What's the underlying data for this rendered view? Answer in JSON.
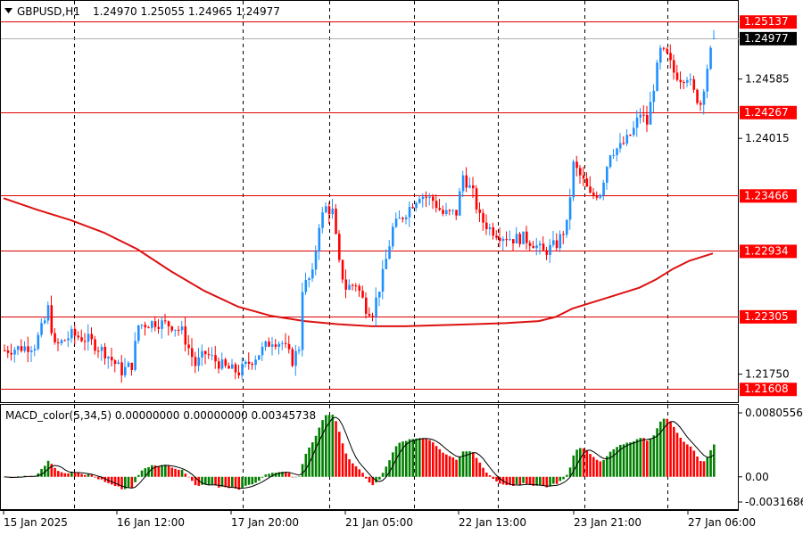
{
  "header": {
    "symbol_label": "GBPUSD,H1",
    "ohlc_text": "1.24970 1.25055 1.24965 1.24977"
  },
  "indicator": {
    "label": "MACD_color(5,34,5) 0.00000000 0.00000000 0.00345738",
    "ticks": [
      "0.0080556",
      "0.00",
      "-0.0031686"
    ]
  },
  "colors": {
    "bull": "#1e90ff",
    "bear": "#ff0000",
    "level_line": "#e00000",
    "ma_line": "#dd1111",
    "grid": "#000000",
    "macd_up": "#008000",
    "macd_down": "#ff0000",
    "signal": "#000000",
    "tag_bg_red": "#ff0000",
    "tag_bg_black": "#000000",
    "tag_text": "#ffffff"
  },
  "price_axis_ticks": [
    "1.24585",
    "1.24015",
    "1.21750"
  ],
  "price_tags": [
    {
      "value": 1.25137,
      "text": "1.25137",
      "style": "red"
    },
    {
      "value": 1.24977,
      "text": "1.24977",
      "style": "black"
    },
    {
      "value": 1.24267,
      "text": "1.24267",
      "style": "red"
    },
    {
      "value": 1.23466,
      "text": "1.23466",
      "style": "red"
    },
    {
      "value": 1.22934,
      "text": "1.22934",
      "style": "red"
    },
    {
      "value": 1.22305,
      "text": "1.22305",
      "style": "red"
    },
    {
      "value": 1.21608,
      "text": "1.21608",
      "style": "red"
    }
  ],
  "time_labels": [
    "15 Jan 2025",
    "16 Jan 12:00",
    "17 Jan 20:00",
    "21 Jan 05:00",
    "22 Jan 13:00",
    "23 Jan 21:00",
    "27 Jan 06:00"
  ],
  "chart_data": {
    "type": "candlestick",
    "symbol": "GBPUSD",
    "timeframe": "H1",
    "ylim": [
      1.2155,
      1.2525
    ],
    "horizontal_levels": [
      1.25137,
      1.24267,
      1.23466,
      1.22934,
      1.22305,
      1.21608
    ],
    "current_price": 1.24977,
    "last_bar": {
      "open": 1.2497,
      "high": 1.25055,
      "low": 1.24965,
      "close": 1.24977
    },
    "close_path": [
      [
        0,
        1.2198
      ],
      [
        6,
        1.2201
      ],
      [
        9,
        1.2203
      ],
      [
        12,
        1.2226
      ],
      [
        13,
        1.2238
      ],
      [
        15,
        1.2201
      ],
      [
        20,
        1.2213
      ],
      [
        25,
        1.2208
      ],
      [
        30,
        1.2196
      ],
      [
        35,
        1.2178
      ],
      [
        38,
        1.2184
      ],
      [
        40,
        1.2222
      ],
      [
        45,
        1.2225
      ],
      [
        50,
        1.2222
      ],
      [
        53,
        1.2216
      ],
      [
        55,
        1.22
      ],
      [
        57,
        1.2184
      ],
      [
        60,
        1.2195
      ],
      [
        63,
        1.2188
      ],
      [
        66,
        1.2181
      ],
      [
        70,
        1.2177
      ],
      [
        75,
        1.2192
      ],
      [
        80,
        1.2208
      ],
      [
        83,
        1.2205
      ],
      [
        86,
        1.2188
      ],
      [
        88,
        1.2201
      ],
      [
        89,
        1.2258
      ],
      [
        92,
        1.227
      ],
      [
        94,
        1.232
      ],
      [
        96,
        1.2335
      ],
      [
        98,
        1.2331
      ],
      [
        100,
        1.228
      ],
      [
        102,
        1.2258
      ],
      [
        105,
        1.2262
      ],
      [
        108,
        1.2239
      ],
      [
        110,
        1.2235
      ],
      [
        113,
        1.227
      ],
      [
        116,
        1.2315
      ],
      [
        120,
        1.2331
      ],
      [
        124,
        1.2348
      ],
      [
        128,
        1.2342
      ],
      [
        131,
        1.2329
      ],
      [
        135,
        1.233
      ],
      [
        137,
        1.2366
      ],
      [
        140,
        1.2348
      ],
      [
        142,
        1.2325
      ],
      [
        145,
        1.2315
      ],
      [
        148,
        1.2309
      ],
      [
        152,
        1.2305
      ],
      [
        155,
        1.2306
      ],
      [
        158,
        1.2301
      ],
      [
        161,
        1.2292
      ],
      [
        165,
        1.23
      ],
      [
        168,
        1.2318
      ],
      [
        170,
        1.2376
      ],
      [
        173,
        1.236
      ],
      [
        175,
        1.2346
      ],
      [
        178,
        1.235
      ],
      [
        181,
        1.2389
      ],
      [
        184,
        1.2393
      ],
      [
        186,
        1.24
      ],
      [
        188,
        1.241
      ],
      [
        190,
        1.2426
      ],
      [
        192,
        1.2416
      ],
      [
        194,
        1.2452
      ],
      [
        196,
        1.2485
      ],
      [
        198,
        1.248
      ],
      [
        200,
        1.2465
      ],
      [
        202,
        1.246
      ],
      [
        204,
        1.2462
      ],
      [
        206,
        1.2445
      ],
      [
        208,
        1.2435
      ],
      [
        210,
        1.247
      ],
      [
        212,
        1.2498
      ]
    ],
    "moving_average": [
      [
        0,
        1.2344
      ],
      [
        10,
        1.2333
      ],
      [
        20,
        1.2323
      ],
      [
        30,
        1.2311
      ],
      [
        40,
        1.2295
      ],
      [
        50,
        1.2274
      ],
      [
        60,
        1.2255
      ],
      [
        70,
        1.224
      ],
      [
        80,
        1.2231
      ],
      [
        90,
        1.2226
      ],
      [
        100,
        1.2223
      ],
      [
        110,
        1.2221
      ],
      [
        120,
        1.2221
      ],
      [
        130,
        1.2222
      ],
      [
        140,
        1.2223
      ],
      [
        150,
        1.2224
      ],
      [
        160,
        1.2226
      ],
      [
        165,
        1.223
      ],
      [
        170,
        1.2238
      ],
      [
        180,
        1.2248
      ],
      [
        190,
        1.2258
      ],
      [
        195,
        1.2266
      ],
      [
        200,
        1.2276
      ],
      [
        205,
        1.2284
      ],
      [
        212,
        1.2291
      ]
    ],
    "macd_ylim": [
      -0.0031686,
      0.0080556
    ]
  }
}
